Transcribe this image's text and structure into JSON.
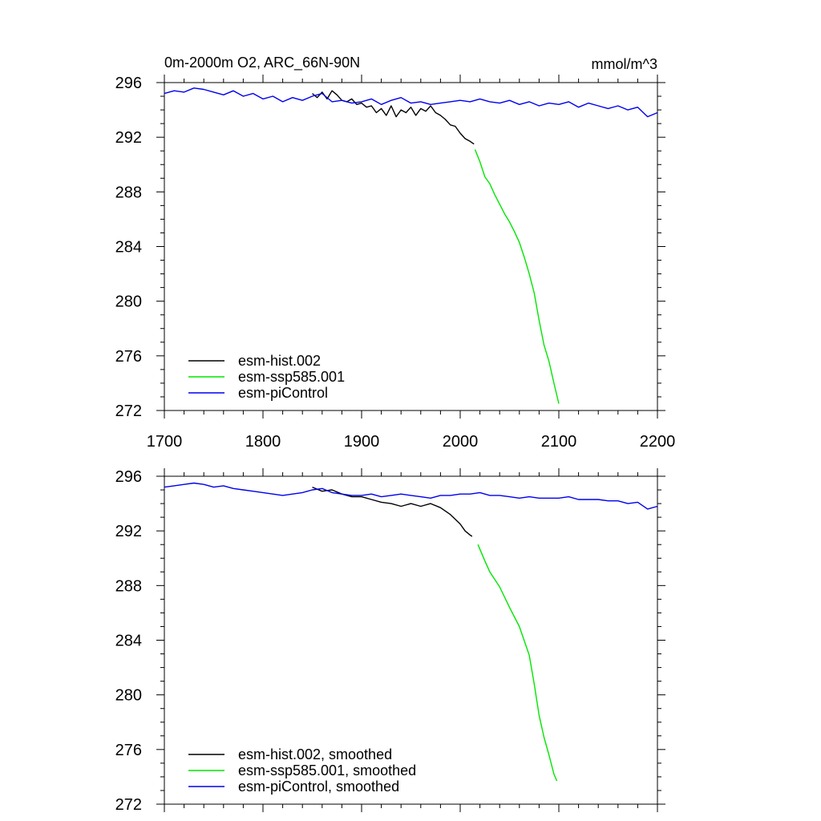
{
  "figure": {
    "title": "0m-2000m O2, ARC_66N-90N",
    "units": "mmol/m^3"
  },
  "colors": {
    "hist": "#000000",
    "ssp": "#00e600",
    "ctrl": "#0000ee"
  },
  "chart_data": [
    {
      "type": "line",
      "title": "0m-2000m O2, ARC_66N-90N",
      "units_label": "mmol/m^3",
      "xlabel": "",
      "ylabel": "",
      "xlim": [
        1700,
        2200
      ],
      "ylim": [
        272,
        296
      ],
      "xticks": [
        1700,
        1800,
        1900,
        2000,
        2100,
        2200
      ],
      "yticks": [
        272,
        276,
        280,
        284,
        288,
        292,
        296
      ],
      "legend_position": "bottom-left",
      "series": [
        {
          "name": "esm-hist.002",
          "color_key": "hist",
          "x": [
            1850,
            1855,
            1860,
            1865,
            1870,
            1875,
            1880,
            1885,
            1890,
            1895,
            1900,
            1905,
            1910,
            1915,
            1920,
            1925,
            1930,
            1935,
            1940,
            1945,
            1950,
            1955,
            1960,
            1965,
            1970,
            1975,
            1980,
            1985,
            1990,
            1995,
            2000,
            2005,
            2010,
            2014
          ],
          "y": [
            295.2,
            294.9,
            295.3,
            294.8,
            295.4,
            295.1,
            294.7,
            294.6,
            294.8,
            294.4,
            294.5,
            294.2,
            294.3,
            293.8,
            294.1,
            293.6,
            294.3,
            293.5,
            294.0,
            293.8,
            294.2,
            293.6,
            294.1,
            293.9,
            294.3,
            293.8,
            293.6,
            293.3,
            292.9,
            292.8,
            292.3,
            291.9,
            291.7,
            291.5
          ]
        },
        {
          "name": "esm-ssp585.001",
          "color_key": "ssp",
          "x": [
            2015,
            2020,
            2025,
            2030,
            2035,
            2040,
            2045,
            2050,
            2055,
            2060,
            2065,
            2070,
            2075,
            2080,
            2085,
            2090,
            2095,
            2100
          ],
          "y": [
            291.1,
            290.2,
            289.1,
            288.6,
            287.8,
            287.1,
            286.4,
            285.8,
            285.1,
            284.3,
            283.2,
            282.0,
            280.6,
            278.6,
            276.8,
            275.6,
            274.0,
            272.5
          ]
        },
        {
          "name": "esm-piControl",
          "color_key": "ctrl",
          "x": [
            1700,
            1710,
            1720,
            1730,
            1740,
            1750,
            1760,
            1770,
            1780,
            1790,
            1800,
            1810,
            1820,
            1830,
            1840,
            1850,
            1860,
            1870,
            1880,
            1890,
            1900,
            1910,
            1920,
            1930,
            1940,
            1950,
            1960,
            1970,
            1980,
            1990,
            2000,
            2010,
            2020,
            2030,
            2040,
            2050,
            2060,
            2070,
            2080,
            2090,
            2100,
            2110,
            2120,
            2130,
            2140,
            2150,
            2160,
            2170,
            2180,
            2190,
            2200
          ],
          "y": [
            295.2,
            295.4,
            295.3,
            295.6,
            295.5,
            295.3,
            295.1,
            295.4,
            295.0,
            295.2,
            294.8,
            295.0,
            294.6,
            294.9,
            294.7,
            295.0,
            295.2,
            294.6,
            294.7,
            294.5,
            294.6,
            294.8,
            294.4,
            294.7,
            294.9,
            294.5,
            294.6,
            294.4,
            294.5,
            294.6,
            294.7,
            294.6,
            294.8,
            294.6,
            294.5,
            294.7,
            294.4,
            294.6,
            294.3,
            294.5,
            294.4,
            294.6,
            294.2,
            294.5,
            294.3,
            294.1,
            294.3,
            294.0,
            294.2,
            293.5,
            293.8
          ]
        }
      ]
    },
    {
      "type": "line",
      "title": "",
      "xlabel": "",
      "ylabel": "",
      "xlim": [
        1700,
        2200
      ],
      "ylim": [
        272,
        296
      ],
      "xticks": [
        1700,
        1800,
        1900,
        2000,
        2100,
        2200
      ],
      "yticks": [
        272,
        276,
        280,
        284,
        288,
        292,
        296
      ],
      "legend_position": "bottom-left",
      "series": [
        {
          "name": "esm-hist.002, smoothed",
          "color_key": "hist",
          "x": [
            1850,
            1860,
            1870,
            1880,
            1890,
            1900,
            1910,
            1920,
            1930,
            1940,
            1950,
            1960,
            1970,
            1980,
            1990,
            2000,
            2005,
            2010,
            2012
          ],
          "y": [
            295.2,
            294.9,
            295.0,
            294.7,
            294.5,
            294.5,
            294.3,
            294.1,
            294.0,
            293.8,
            294.0,
            293.8,
            294.0,
            293.7,
            293.2,
            292.5,
            292.0,
            291.7,
            291.6
          ]
        },
        {
          "name": "esm-ssp585.001, smoothed",
          "color_key": "ssp",
          "x": [
            2018,
            2025,
            2030,
            2040,
            2050,
            2060,
            2070,
            2075,
            2080,
            2085,
            2090,
            2095,
            2098
          ],
          "y": [
            291.0,
            289.8,
            289.0,
            287.9,
            286.4,
            285.0,
            282.9,
            280.8,
            278.5,
            276.9,
            275.6,
            274.2,
            273.7
          ]
        },
        {
          "name": "esm-piControl, smoothed",
          "color_key": "ctrl",
          "x": [
            1700,
            1710,
            1720,
            1730,
            1740,
            1750,
            1760,
            1770,
            1780,
            1790,
            1800,
            1810,
            1820,
            1830,
            1840,
            1850,
            1860,
            1870,
            1880,
            1890,
            1900,
            1910,
            1920,
            1930,
            1940,
            1950,
            1960,
            1970,
            1980,
            1990,
            2000,
            2010,
            2020,
            2030,
            2040,
            2050,
            2060,
            2070,
            2080,
            2090,
            2100,
            2110,
            2120,
            2130,
            2140,
            2150,
            2160,
            2170,
            2180,
            2190,
            2200
          ],
          "y": [
            295.2,
            295.3,
            295.4,
            295.5,
            295.4,
            295.2,
            295.3,
            295.1,
            295.0,
            294.9,
            294.8,
            294.7,
            294.6,
            294.7,
            294.8,
            295.0,
            295.1,
            294.8,
            294.7,
            294.6,
            294.6,
            294.7,
            294.5,
            294.6,
            294.7,
            294.6,
            294.5,
            294.4,
            294.6,
            294.6,
            294.7,
            294.7,
            294.8,
            294.6,
            294.6,
            294.5,
            294.4,
            294.5,
            294.4,
            294.4,
            294.4,
            294.5,
            294.3,
            294.3,
            294.3,
            294.2,
            294.2,
            294.0,
            294.1,
            293.6,
            293.8
          ]
        }
      ]
    }
  ]
}
